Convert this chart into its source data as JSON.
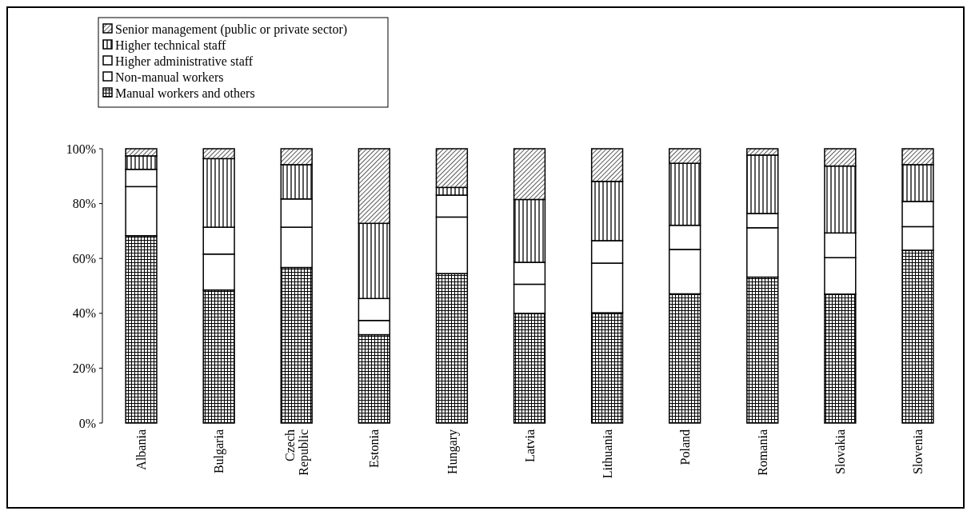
{
  "chart_data": {
    "type": "bar",
    "stacked": true,
    "legend": "top left",
    "grid": false,
    "categories": [
      "Albania",
      "Bulgaria",
      "Czech Republic",
      "Estonia",
      "Hungary",
      "Latvia",
      "Lithuania",
      "Poland",
      "Romania",
      "Slovakia",
      "Slovenia"
    ],
    "ylim": [
      0,
      100
    ],
    "yticks": [
      {
        "value": 0,
        "label": "0%"
      },
      {
        "value": 20,
        "label": "20%"
      },
      {
        "value": 40,
        "label": "40%"
      },
      {
        "value": 60,
        "label": "60%"
      },
      {
        "value": 80,
        "label": "80%"
      },
      {
        "value": 100,
        "label": "100%"
      }
    ],
    "series": [
      {
        "name": "Manual workers and others",
        "color": "#000000",
        "values": [
          68.3,
          48.5,
          56.7,
          32.2,
          54.5,
          40.0,
          40.2,
          47.1,
          53.2,
          47.0,
          63.0
        ]
      },
      {
        "name": "Non-manual workers",
        "color": "#ffffff",
        "values": [
          17.9,
          13.1,
          14.7,
          5.2,
          20.6,
          10.6,
          18.1,
          16.2,
          18.0,
          13.3,
          8.6
        ]
      },
      {
        "name": "Higher administrative staff",
        "color": "#ffffff",
        "values": [
          6.3,
          9.8,
          10.3,
          8.0,
          8.0,
          8.0,
          8.2,
          8.8,
          5.2,
          9.0,
          9.2
        ]
      },
      {
        "name": "Higher technical staff",
        "color": "#000000",
        "values": [
          4.9,
          25.0,
          12.5,
          27.4,
          2.8,
          22.9,
          21.6,
          22.6,
          21.3,
          24.4,
          13.4
        ]
      },
      {
        "name": "Senior management (public or private sector)",
        "color": "#000000",
        "values": [
          2.6,
          3.6,
          5.8,
          27.2,
          14.1,
          18.5,
          11.9,
          5.3,
          2.3,
          6.3,
          5.8
        ]
      }
    ]
  }
}
